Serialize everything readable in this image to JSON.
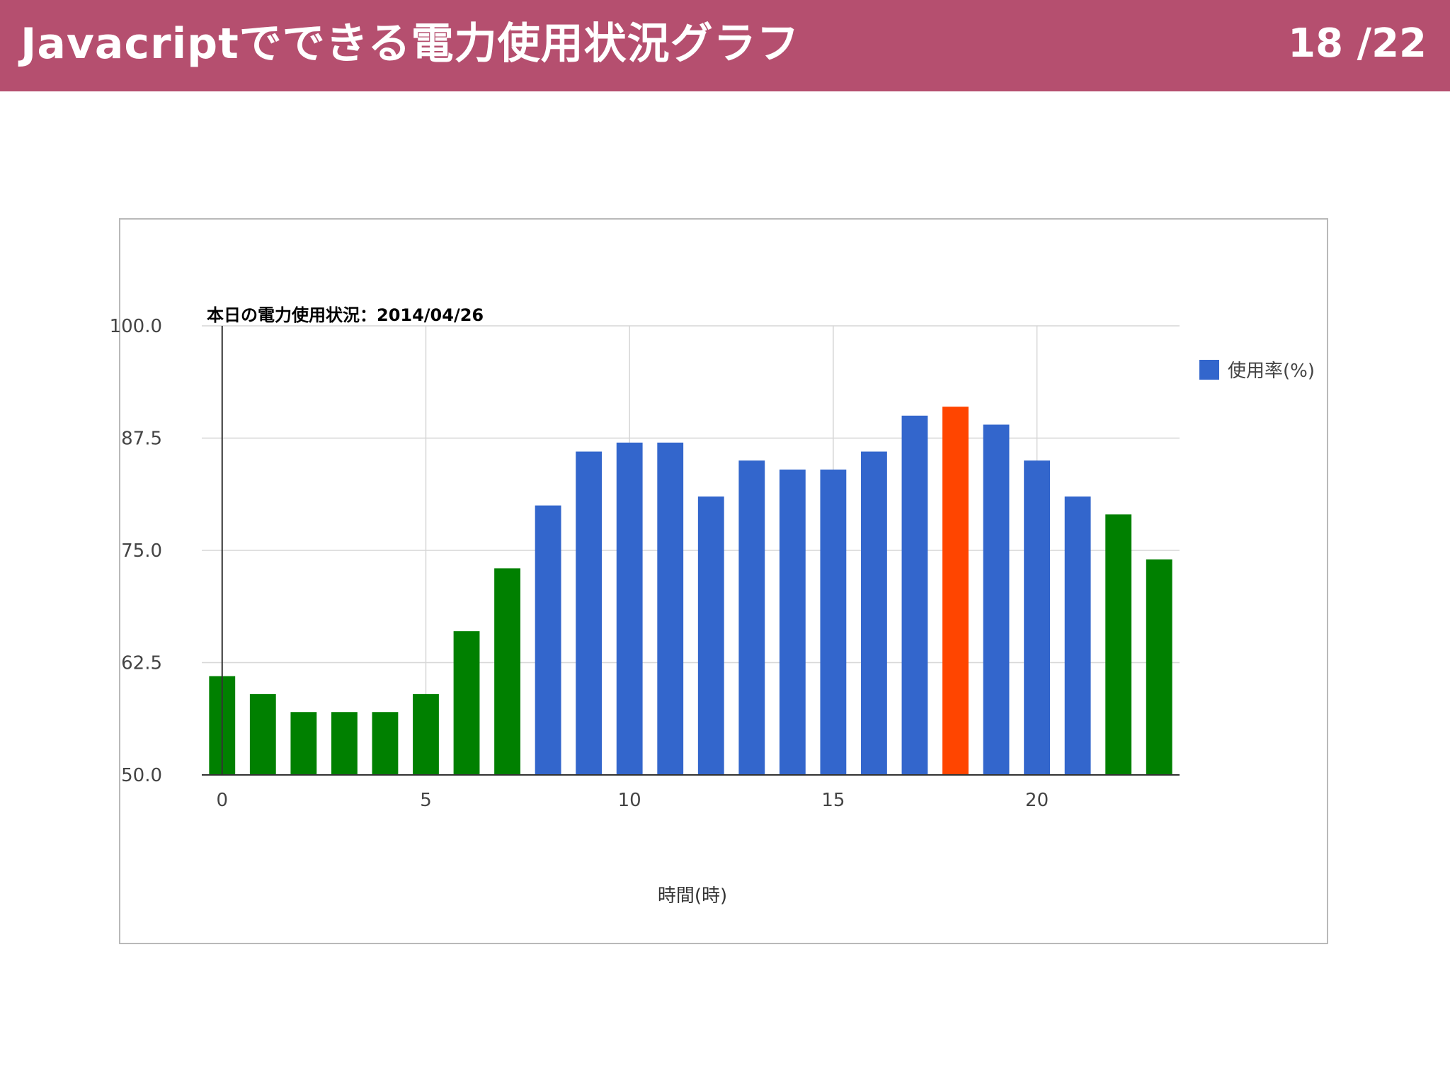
{
  "slide": {
    "title": "Javacriptでできる電力使用状況グラフ",
    "page_current": "18",
    "page_total": "/22"
  },
  "colors": {
    "header_bg": "#b54f6f",
    "bar_low": "#008000",
    "bar_mid": "#3366cc",
    "bar_peak": "#ff4500"
  },
  "chart_data": {
    "type": "bar",
    "title": "本日の電力使用状況：2014/04/26",
    "xlabel": "時間(時)",
    "ylabel": "",
    "x": [
      0,
      1,
      2,
      3,
      4,
      5,
      6,
      7,
      8,
      9,
      10,
      11,
      12,
      13,
      14,
      15,
      16,
      17,
      18,
      19,
      20,
      21,
      22,
      23
    ],
    "series": [
      {
        "name": "使用率(%)",
        "values": [
          61,
          59,
          57,
          57,
          57,
          59,
          66,
          73,
          80,
          86,
          87,
          87,
          81,
          85,
          84,
          84,
          86,
          90,
          91,
          89,
          85,
          81,
          79,
          74
        ],
        "bar_colors": [
          "#008000",
          "#008000",
          "#008000",
          "#008000",
          "#008000",
          "#008000",
          "#008000",
          "#008000",
          "#3366cc",
          "#3366cc",
          "#3366cc",
          "#3366cc",
          "#3366cc",
          "#3366cc",
          "#3366cc",
          "#3366cc",
          "#3366cc",
          "#3366cc",
          "#ff4500",
          "#3366cc",
          "#3366cc",
          "#3366cc",
          "#008000",
          "#008000"
        ]
      }
    ],
    "ylim": [
      50,
      100
    ],
    "yticks": [
      "50.0",
      "62.5",
      "75.0",
      "87.5",
      "100.0"
    ],
    "xticks": [
      "0",
      "5",
      "10",
      "15",
      "20"
    ],
    "grid": true,
    "legend": "right"
  }
}
